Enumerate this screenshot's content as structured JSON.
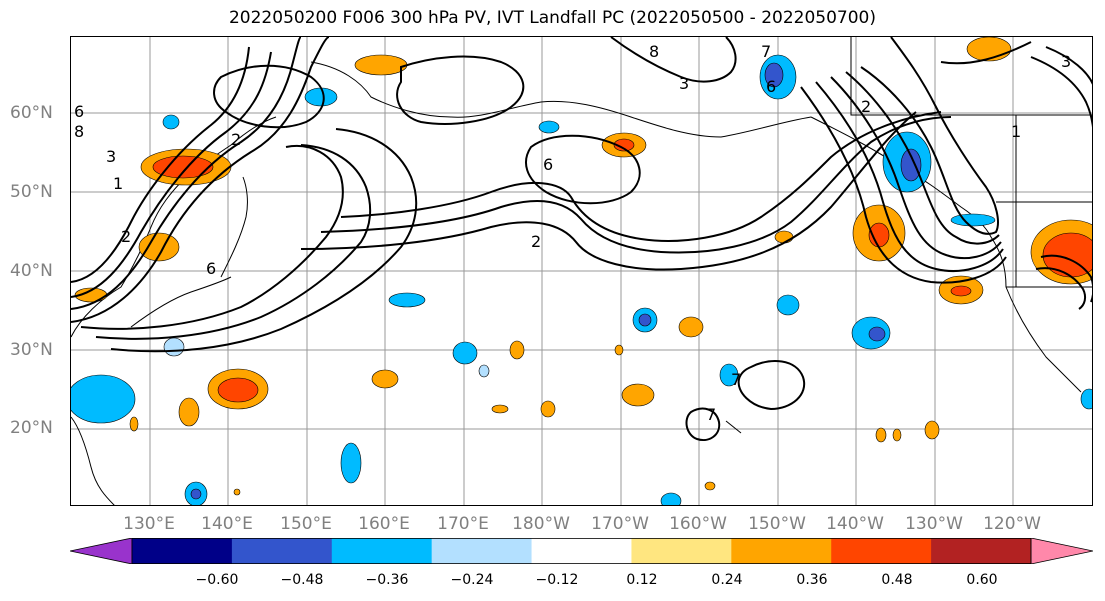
{
  "title": "2022050200 F006 300 hPa PV, IVT Landfall PC (2022050500 - 2022050700)",
  "lat_labels": [
    "60°N",
    "50°N",
    "40°N",
    "30°N",
    "20°N"
  ],
  "lon_labels": [
    "130°E",
    "140°E",
    "150°E",
    "160°E",
    "170°E",
    "180°W",
    "170°W",
    "160°W",
    "150°W",
    "140°W",
    "130°W",
    "120°W"
  ],
  "colorbar": {
    "ticks": [
      "−0.60",
      "−0.48",
      "−0.36",
      "−0.24",
      "−0.12",
      "0.12",
      "0.24",
      "0.36",
      "0.48",
      "0.60"
    ],
    "colors": [
      "#9933cc",
      "#000088",
      "#3355cc",
      "#00bbff",
      "#b3e0ff",
      "#ffffff",
      "#ffe680",
      "#ffa500",
      "#ff4500",
      "#b22222",
      "#ff88aa"
    ]
  },
  "contour_labels": [
    "2",
    "3",
    "1",
    "6",
    "2",
    "6",
    "2",
    "8",
    "3",
    "7",
    "6",
    "2",
    "1",
    "3",
    "7",
    "7",
    "6",
    "8"
  ],
  "colors": {
    "contour": "#000000",
    "grid": "#999999",
    "axis_label": "#808080"
  }
}
